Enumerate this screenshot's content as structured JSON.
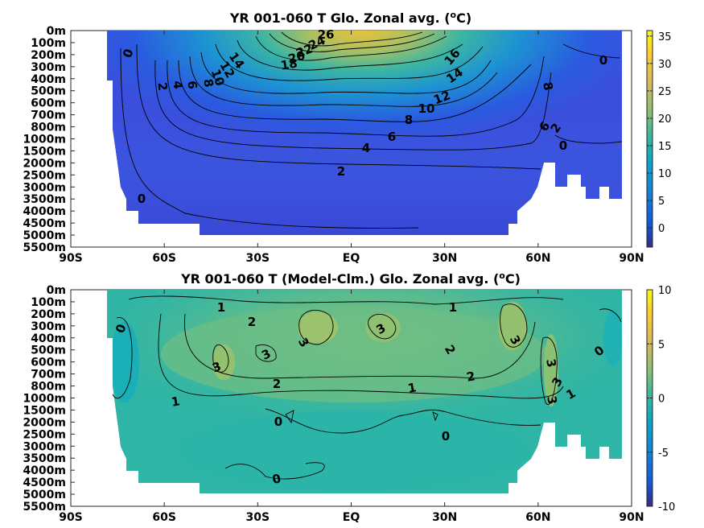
{
  "chart_data": [
    {
      "type": "heatmap",
      "title": "YR 001-060 T Glo. Zonal avg. (",
      "title_sup": "o",
      "title_end": "C)",
      "x_ticks": [
        "90S",
        "60S",
        "30S",
        "EQ",
        "30N",
        "60N",
        "90N"
      ],
      "x_values": [
        -90,
        -60,
        -30,
        0,
        30,
        60,
        90
      ],
      "y_ticks": [
        "0m",
        "100m",
        "200m",
        "300m",
        "400m",
        "500m",
        "600m",
        "700m",
        "800m",
        "1000m",
        "1500m",
        "2000m",
        "2500m",
        "3000m",
        "3500m",
        "4000m",
        "4500m",
        "5000m",
        "5500m"
      ],
      "colorbar": {
        "ticks": [
          "35",
          "30",
          "25",
          "20",
          "15",
          "10",
          "5",
          "0"
        ],
        "tick_values": [
          35,
          30,
          25,
          20,
          15,
          10,
          5,
          0
        ],
        "range": [
          -3.5,
          36
        ]
      },
      "colormap": "parula",
      "contour_labels": [
        "26",
        "24",
        "22",
        "20",
        "18",
        "16",
        "14",
        "12",
        "10",
        "8",
        "6",
        "4",
        "2",
        "0",
        "0",
        "14",
        "12",
        "10",
        "8",
        "6",
        "4",
        "2",
        "0",
        "8",
        "6",
        "2",
        "0"
      ]
    },
    {
      "type": "heatmap",
      "title": "YR 001-060 T (Model-Clm.) Glo. Zonal avg. (",
      "title_sup": "o",
      "title_end": "C)",
      "x_ticks": [
        "90S",
        "60S",
        "30S",
        "EQ",
        "30N",
        "60N",
        "90N"
      ],
      "x_values": [
        -90,
        -60,
        -30,
        0,
        30,
        60,
        90
      ],
      "y_ticks": [
        "0m",
        "100m",
        "200m",
        "300m",
        "400m",
        "500m",
        "600m",
        "700m",
        "800m",
        "1000m",
        "1500m",
        "2000m",
        "2500m",
        "3000m",
        "3500m",
        "4000m",
        "4500m",
        "5000m",
        "5500m"
      ],
      "colorbar": {
        "ticks": [
          "10",
          "5",
          "0",
          "-5",
          "-10"
        ],
        "tick_values": [
          10,
          5,
          0,
          -5,
          -10
        ],
        "range": [
          -10,
          10
        ]
      },
      "colormap": "parula",
      "contour_labels": [
        "1",
        "1",
        "0",
        "2",
        "3",
        "3",
        "3",
        "3",
        "3",
        "2",
        "2",
        "1",
        "1",
        "3",
        "3",
        "2",
        "3",
        "1",
        "0",
        "0",
        "0",
        "0"
      ]
    }
  ]
}
